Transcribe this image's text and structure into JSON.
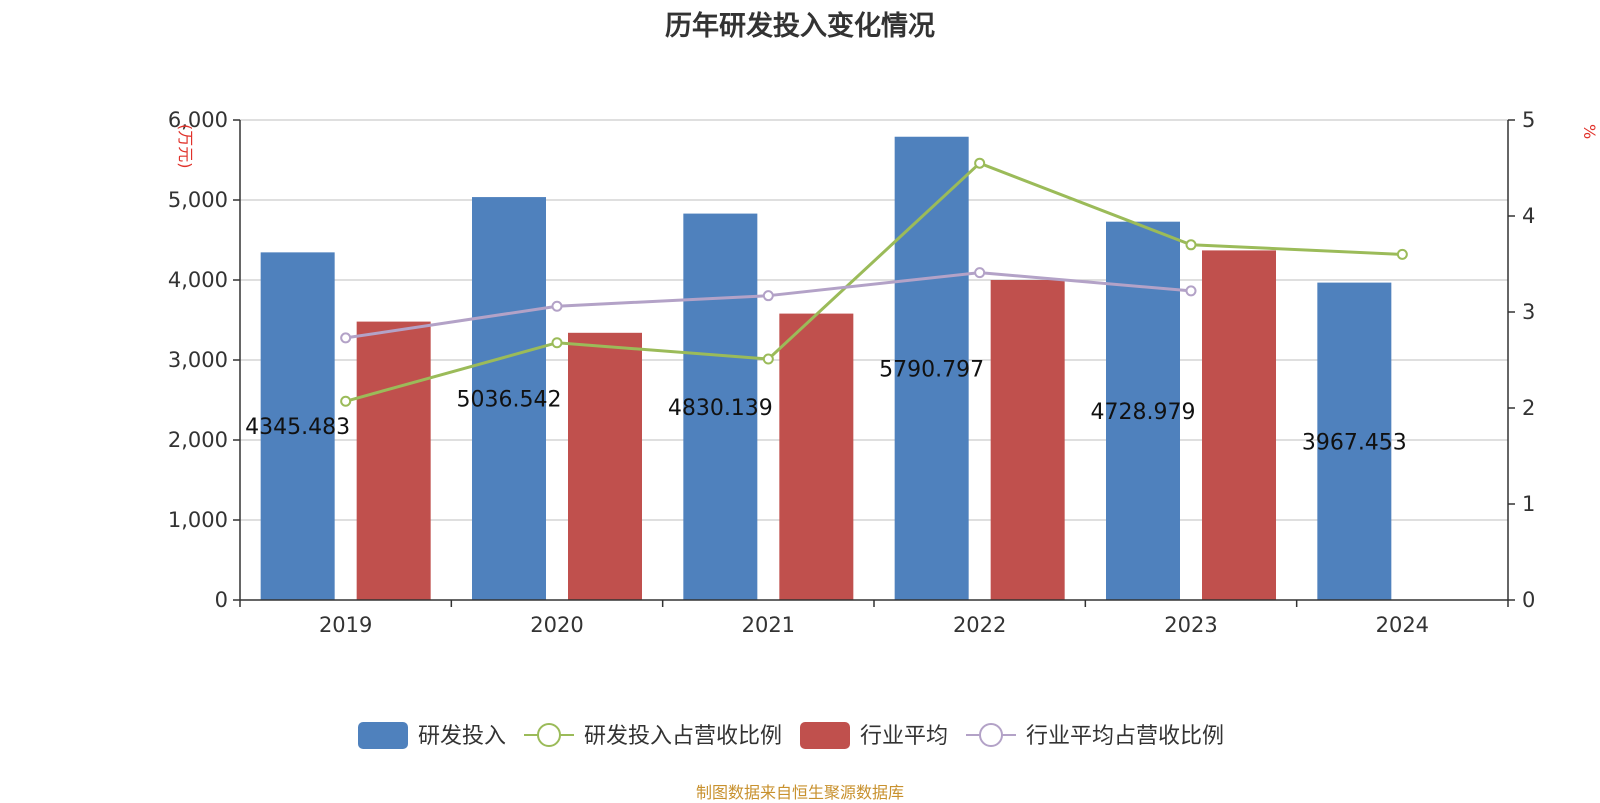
{
  "chart_data": {
    "type": "bar",
    "title": "历年研发投入变化情况",
    "categories": [
      "2019",
      "2020",
      "2021",
      "2022",
      "2023",
      "2024"
    ],
    "y_left": {
      "unit": "万元",
      "min": 0,
      "max": 6000,
      "ticks": [
        "0",
        "1,000",
        "2,000",
        "3,000",
        "4,000",
        "5,000",
        "6,000"
      ]
    },
    "y_right": {
      "unit": "%",
      "min": 0,
      "max": 5,
      "ticks": [
        "0",
        "1",
        "2",
        "3",
        "4",
        "5"
      ]
    },
    "grid": true,
    "legend_position": "bottom",
    "series": [
      {
        "name": "研发投入",
        "type": "bar",
        "axis": "left",
        "color": "#4f81bd",
        "values": [
          4345.483,
          5036.542,
          4830.139,
          5790.797,
          4728.979,
          3967.453
        ],
        "labels": [
          "4345.483",
          "5036.542",
          "4830.139",
          "5790.797",
          "4728.979",
          "3967.453"
        ]
      },
      {
        "name": "研发投入占营收比例",
        "type": "line",
        "axis": "right",
        "color": "#9bbb59",
        "values": [
          2.07,
          2.68,
          2.51,
          4.55,
          3.7,
          3.6
        ]
      },
      {
        "name": "行业平均",
        "type": "bar",
        "axis": "left",
        "color": "#c0504d",
        "values": [
          3480,
          3340,
          3580,
          4000,
          4370,
          null
        ]
      },
      {
        "name": "行业平均占营收比例",
        "type": "line",
        "axis": "right",
        "color": "#b3a2c7",
        "values": [
          2.73,
          3.06,
          3.17,
          3.41,
          3.22,
          null
        ]
      }
    ]
  },
  "footer": {
    "source": "制图数据来自恒生聚源数据库",
    "source_color": "#c8912e"
  },
  "colors": {
    "axis": "#333333",
    "grid": "#cccccc",
    "unit_left": "#e0322b",
    "unit_right": "#e0322b"
  }
}
